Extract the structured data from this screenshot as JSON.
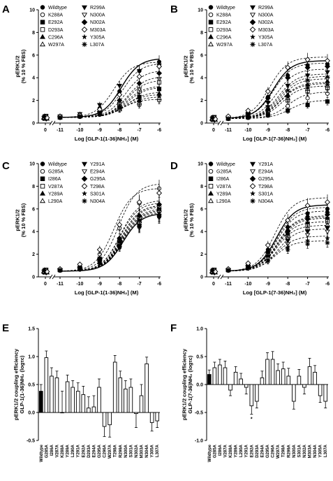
{
  "chart_data": [
    {
      "panel": "A",
      "type": "line",
      "ylabel": [
        "pERK1/2",
        "(% 10 % FBS)"
      ],
      "xlabel": "Log [GLP-1(1-36)NH₂] (M)",
      "x_ticks": [
        "0",
        "-11",
        "-10",
        "-9",
        "-8",
        "-7",
        "-6"
      ],
      "y_ticks": [
        "0",
        "2",
        "4",
        "6",
        "8",
        "10"
      ],
      "ylim": [
        0,
        10
      ],
      "legend": [
        "Wildtype",
        "K288A",
        "E292A",
        "D293A",
        "C296A",
        "W297A",
        "R299A",
        "N300A",
        "N302A",
        "M303A",
        "Y305A",
        "L307A"
      ],
      "series": [
        {
          "name": "Wildtype",
          "marker": "circle-filled",
          "basal": 0.5,
          "values": [
            0.5,
            0.6,
            0.7,
            1.3,
            2.8,
            4.6,
            5.4
          ]
        },
        {
          "name": "K288A",
          "marker": "circle-open",
          "basal": 0.5,
          "values": [
            0.5,
            0.5,
            0.6,
            0.8,
            1.2,
            1.6,
            2.0
          ]
        },
        {
          "name": "E292A",
          "marker": "square-filled",
          "basal": 0.5,
          "values": [
            0.5,
            0.5,
            0.6,
            0.8,
            1.4,
            2.3,
            3.0
          ]
        },
        {
          "name": "D293A",
          "marker": "square-open",
          "basal": 0.5,
          "values": [
            0.5,
            0.5,
            0.6,
            0.9,
            1.6,
            2.8,
            3.6
          ]
        },
        {
          "name": "C296A",
          "marker": "triangle-filled",
          "basal": 0.5,
          "values": [
            0.5,
            0.5,
            0.6,
            0.8,
            1.3,
            2.0,
            2.6
          ]
        },
        {
          "name": "W297A",
          "marker": "triangle-open",
          "basal": 0.5,
          "values": [
            0.5,
            0.5,
            0.6,
            0.8,
            1.2,
            1.8,
            2.2
          ]
        },
        {
          "name": "R299A",
          "marker": "triangle-down-filled",
          "basal": 0.5,
          "values": [
            0.5,
            0.6,
            0.8,
            1.6,
            3.3,
            4.6,
            5.1
          ]
        },
        {
          "name": "N300A",
          "marker": "triangle-down-open",
          "basal": 0.5,
          "values": [
            0.5,
            0.5,
            0.6,
            0.9,
            1.7,
            3.0,
            3.9
          ]
        },
        {
          "name": "N302A",
          "marker": "diamond-filled",
          "basal": 0.5,
          "values": [
            0.5,
            0.5,
            0.6,
            1.0,
            2.0,
            3.5,
            4.4
          ]
        },
        {
          "name": "M303A",
          "marker": "diamond-open",
          "basal": 0.5,
          "values": [
            0.5,
            0.6,
            0.7,
            1.2,
            2.5,
            4.1,
            5.0
          ]
        },
        {
          "name": "Y305A",
          "marker": "star",
          "basal": 0.5,
          "values": [
            0.5,
            0.5,
            0.6,
            0.9,
            1.5,
            2.4,
            3.1
          ]
        },
        {
          "name": "L307A",
          "marker": "asterisk",
          "basal": 0.5,
          "values": [
            0.5,
            0.5,
            0.6,
            0.8,
            1.3,
            1.9,
            2.4
          ]
        }
      ]
    },
    {
      "panel": "B",
      "type": "line",
      "ylabel": [
        "pERK1/2",
        "(% 10 % FBS)"
      ],
      "xlabel": "Log [GLP-1(7-36)NH₂] (M)",
      "x_ticks": [
        "0",
        "-11",
        "-10",
        "-9",
        "-8",
        "-7",
        "-6"
      ],
      "y_ticks": [
        "0",
        "2",
        "4",
        "6",
        "8",
        "10"
      ],
      "ylim": [
        0,
        10
      ],
      "legend": [
        "Wildtype",
        "K288A",
        "E292A",
        "D293A",
        "C296A",
        "W297A",
        "R299A",
        "N300A",
        "N302A",
        "M303A",
        "Y305A",
        "L307A"
      ],
      "series": [
        {
          "name": "Wildtype",
          "marker": "circle-filled",
          "basal": 0.4,
          "values": [
            0.4,
            0.5,
            0.9,
            2.3,
            4.2,
            5.1,
            5.2
          ]
        },
        {
          "name": "K288A",
          "marker": "circle-open",
          "basal": 0.4,
          "values": [
            0.4,
            0.4,
            0.5,
            0.8,
            1.5,
            2.2,
            2.6
          ]
        },
        {
          "name": "E292A",
          "marker": "square-filled",
          "basal": 0.4,
          "values": [
            0.4,
            0.4,
            0.5,
            0.7,
            1.1,
            1.6,
            1.9
          ]
        },
        {
          "name": "D293A",
          "marker": "square-open",
          "basal": 0.4,
          "values": [
            0.4,
            0.4,
            0.6,
            1.1,
            2.0,
            2.8,
            3.1
          ]
        },
        {
          "name": "C296A",
          "marker": "triangle-filled",
          "basal": 0.4,
          "values": [
            0.4,
            0.4,
            0.6,
            1.3,
            2.5,
            3.4,
            3.7
          ]
        },
        {
          "name": "W297A",
          "marker": "triangle-open",
          "basal": 0.4,
          "values": [
            0.4,
            0.4,
            0.6,
            1.2,
            2.2,
            3.0,
            3.3
          ]
        },
        {
          "name": "R299A",
          "marker": "triangle-down-filled",
          "basal": 0.4,
          "values": [
            0.4,
            0.5,
            0.8,
            1.8,
            3.3,
            4.2,
            4.5
          ]
        },
        {
          "name": "N300A",
          "marker": "triangle-down-open",
          "basal": 0.4,
          "values": [
            0.4,
            0.4,
            0.7,
            1.4,
            2.7,
            3.6,
            3.9
          ]
        },
        {
          "name": "N302A",
          "marker": "diamond-filled",
          "basal": 0.4,
          "values": [
            0.4,
            0.5,
            0.9,
            2.2,
            4.0,
            4.9,
            5.0
          ]
        },
        {
          "name": "M303A",
          "marker": "diamond-open",
          "basal": 0.4,
          "values": [
            0.4,
            0.6,
            1.1,
            2.8,
            4.9,
            5.6,
            5.5
          ]
        },
        {
          "name": "Y305A",
          "marker": "star",
          "basal": 0.4,
          "values": [
            0.4,
            0.4,
            0.7,
            1.5,
            2.9,
            3.8,
            4.1
          ]
        },
        {
          "name": "L307A",
          "marker": "asterisk",
          "basal": 0.4,
          "values": [
            0.4,
            0.4,
            0.6,
            1.2,
            2.3,
            3.1,
            3.4
          ]
        }
      ]
    },
    {
      "panel": "C",
      "type": "line",
      "ylabel": [
        "pERK1/2",
        "(% 10 % FBS)"
      ],
      "xlabel": "Log [GLP-1(1-36)NH₂] (M)",
      "x_ticks": [
        "0",
        "-11",
        "-10",
        "-9",
        "-8",
        "-7",
        "-6"
      ],
      "y_ticks": [
        "0",
        "2",
        "4",
        "6",
        "8",
        "10"
      ],
      "ylim": [
        0,
        10
      ],
      "legend": [
        "Wildtype",
        "G285A",
        "I286A",
        "V287A",
        "Y289A",
        "L290A",
        "Y291A",
        "E294A",
        "G295A",
        "T298A",
        "S301A",
        "N304A"
      ],
      "series": [
        {
          "name": "Wildtype",
          "marker": "circle-filled",
          "basal": 0.5,
          "values": [
            0.5,
            0.6,
            0.7,
            1.2,
            2.6,
            4.4,
            5.3
          ]
        },
        {
          "name": "G285A",
          "marker": "circle-open",
          "basal": 0.5,
          "values": [
            0.5,
            0.6,
            0.9,
            2.0,
            4.3,
            6.5,
            7.8
          ]
        },
        {
          "name": "I286A",
          "marker": "square-filled",
          "basal": 0.5,
          "values": [
            0.5,
            0.6,
            0.8,
            1.5,
            3.1,
            5.0,
            6.0
          ]
        },
        {
          "name": "V287A",
          "marker": "square-open",
          "basal": 0.5,
          "values": [
            0.5,
            0.6,
            0.8,
            1.6,
            3.3,
            5.2,
            6.2
          ]
        },
        {
          "name": "Y289A",
          "marker": "triangle-filled",
          "basal": 0.5,
          "values": [
            0.5,
            0.6,
            0.7,
            1.3,
            2.8,
            4.6,
            5.5
          ]
        },
        {
          "name": "L290A",
          "marker": "triangle-open",
          "basal": 0.5,
          "values": [
            0.5,
            0.6,
            0.8,
            1.5,
            3.0,
            4.9,
            5.9
          ]
        },
        {
          "name": "Y291A",
          "marker": "triangle-down-filled",
          "basal": 0.5,
          "values": [
            0.5,
            0.6,
            0.7,
            1.3,
            2.7,
            4.5,
            5.4
          ]
        },
        {
          "name": "E294A",
          "marker": "triangle-down-open",
          "basal": 0.5,
          "values": [
            0.5,
            0.6,
            0.8,
            1.4,
            2.9,
            4.7,
            5.7
          ]
        },
        {
          "name": "G295A",
          "marker": "diamond-filled",
          "basal": 0.5,
          "values": [
            0.5,
            0.6,
            0.8,
            1.6,
            3.4,
            5.4,
            6.4
          ]
        },
        {
          "name": "T298A",
          "marker": "diamond-open",
          "basal": 0.5,
          "values": [
            0.5,
            0.7,
            1.1,
            2.4,
            4.6,
            6.6,
            7.4
          ]
        },
        {
          "name": "S301A",
          "marker": "star",
          "basal": 0.5,
          "values": [
            0.5,
            0.6,
            0.7,
            1.3,
            2.8,
            4.6,
            5.6
          ]
        },
        {
          "name": "N304A",
          "marker": "asterisk",
          "basal": 0.5,
          "values": [
            0.5,
            0.6,
            0.8,
            1.5,
            3.1,
            5.0,
            6.0
          ]
        }
      ]
    },
    {
      "panel": "D",
      "type": "line",
      "ylabel": [
        "pERK1/2",
        "(% 10 % FBS)"
      ],
      "xlabel": "Log [GLP-1(7-36)NH₂] (M)",
      "x_ticks": [
        "0",
        "-11",
        "-10",
        "-9",
        "-8",
        "-7",
        "-6"
      ],
      "y_ticks": [
        "0",
        "2",
        "4",
        "6",
        "8",
        "10"
      ],
      "ylim": [
        0,
        10
      ],
      "legend": [
        "Wildtype",
        "G285A",
        "I286A",
        "V287A",
        "Y289A",
        "L290A",
        "Y291A",
        "E294A",
        "G295A",
        "T298A",
        "S301A",
        "N304A"
      ],
      "series": [
        {
          "name": "Wildtype",
          "marker": "circle-filled",
          "basal": 0.5,
          "values": [
            0.5,
            0.6,
            1.0,
            2.4,
            4.4,
            5.6,
            6.0
          ]
        },
        {
          "name": "G285A",
          "marker": "circle-open",
          "basal": 0.5,
          "values": [
            0.5,
            0.6,
            0.9,
            2.0,
            3.6,
            4.6,
            5.0
          ]
        },
        {
          "name": "I286A",
          "marker": "square-filled",
          "basal": 0.5,
          "values": [
            0.5,
            0.6,
            0.9,
            2.0,
            3.7,
            4.7,
            5.1
          ]
        },
        {
          "name": "V287A",
          "marker": "square-open",
          "basal": 0.5,
          "values": [
            0.5,
            0.6,
            0.9,
            1.9,
            3.5,
            4.5,
            4.9
          ]
        },
        {
          "name": "Y289A",
          "marker": "triangle-filled",
          "basal": 0.5,
          "values": [
            0.5,
            0.6,
            1.0,
            2.3,
            4.2,
            5.4,
            5.8
          ]
        },
        {
          "name": "L290A",
          "marker": "triangle-open",
          "basal": 0.5,
          "values": [
            0.5,
            0.6,
            0.9,
            1.9,
            3.4,
            4.3,
            4.6
          ]
        },
        {
          "name": "Y291A",
          "marker": "triangle-down-filled",
          "basal": 0.5,
          "values": [
            0.5,
            0.6,
            0.9,
            1.8,
            3.2,
            4.0,
            4.3
          ]
        },
        {
          "name": "E294A",
          "marker": "triangle-down-open",
          "basal": 0.5,
          "values": [
            0.5,
            0.6,
            0.8,
            1.6,
            2.9,
            3.7,
            4.0
          ]
        },
        {
          "name": "G295A",
          "marker": "diamond-filled",
          "basal": 0.5,
          "values": [
            0.5,
            0.6,
            1.0,
            2.2,
            4.0,
            5.1,
            5.5
          ]
        },
        {
          "name": "T298A",
          "marker": "diamond-open",
          "basal": 0.5,
          "values": [
            0.5,
            0.7,
            1.2,
            2.8,
            5.0,
            6.3,
            6.6
          ]
        },
        {
          "name": "S301A",
          "marker": "star",
          "basal": 0.5,
          "values": [
            0.5,
            0.6,
            0.8,
            1.5,
            2.6,
            3.2,
            3.4
          ]
        },
        {
          "name": "N304A",
          "marker": "asterisk",
          "basal": 0.5,
          "values": [
            0.5,
            0.6,
            0.8,
            1.4,
            2.4,
            2.9,
            3.0
          ]
        }
      ]
    },
    {
      "panel": "E",
      "type": "bar",
      "ylabel": [
        "pERK1/2 coupling efficiency",
        "GLP-1(1-36)NH₂ (logτc)"
      ],
      "y_ticks": [
        "-0.5",
        "0.0",
        "0.5",
        "1.0",
        "1.5"
      ],
      "ylim": [
        -0.5,
        1.5
      ],
      "categories": [
        "Wildtype",
        "G285A",
        "I286A",
        "V287A",
        "K288A",
        "Y289A",
        "L290A",
        "Y291A",
        "E292A",
        "D293A",
        "E294A",
        "G295A",
        "C296A",
        "W297A",
        "T298A",
        "R299A",
        "N300A",
        "S301A",
        "N302A",
        "M303A",
        "N304A",
        "Y305A",
        "L307A"
      ],
      "values": [
        0.38,
        0.98,
        0.65,
        0.62,
        0.0,
        0.55,
        0.45,
        0.38,
        0.32,
        0.08,
        0.1,
        0.45,
        -0.25,
        -0.22,
        0.9,
        0.62,
        0.42,
        0.45,
        -0.02,
        0.3,
        0.87,
        -0.18,
        -0.15
      ],
      "errors": [
        0.12,
        0.12,
        0.15,
        0.12,
        0.38,
        0.12,
        0.12,
        0.15,
        0.15,
        0.2,
        0.2,
        0.15,
        0.18,
        0.22,
        0.12,
        0.12,
        0.15,
        0.15,
        0.25,
        0.2,
        0.12,
        0.15,
        0.12
      ]
    },
    {
      "panel": "F",
      "type": "bar",
      "ylabel": [
        "pERK1/2 coupling efficiency",
        "GLP-1(7-36)NH₂ (logτc)"
      ],
      "y_ticks": [
        "-1.0",
        "-0.5",
        "0.0",
        "0.5",
        "1.0"
      ],
      "ylim": [
        -1.0,
        1.0
      ],
      "annotation": "*",
      "categories": [
        "Wildtype",
        "G285A",
        "I286A",
        "V287A",
        "K288A",
        "Y289A",
        "L290A",
        "Y291A",
        "E292A",
        "D293A",
        "E294A",
        "G295A",
        "C296A",
        "W297A",
        "T298A",
        "R299A",
        "N300A",
        "S301A",
        "N302A",
        "M303A",
        "N304A",
        "Y305A",
        "L307A"
      ],
      "values": [
        0.18,
        0.3,
        0.35,
        0.3,
        -0.1,
        0.22,
        0.1,
        -0.05,
        -0.38,
        -0.3,
        0.12,
        0.45,
        0.45,
        0.25,
        0.28,
        0.15,
        -0.3,
        0.15,
        -0.05,
        0.32,
        0.22,
        -0.2,
        -0.3
      ],
      "errors": [
        0.08,
        0.1,
        0.1,
        0.12,
        0.1,
        0.1,
        0.1,
        0.12,
        0.15,
        0.12,
        0.12,
        0.12,
        0.14,
        0.12,
        0.12,
        0.14,
        0.14,
        0.12,
        0.12,
        0.15,
        0.12,
        0.12,
        0.12
      ]
    }
  ]
}
